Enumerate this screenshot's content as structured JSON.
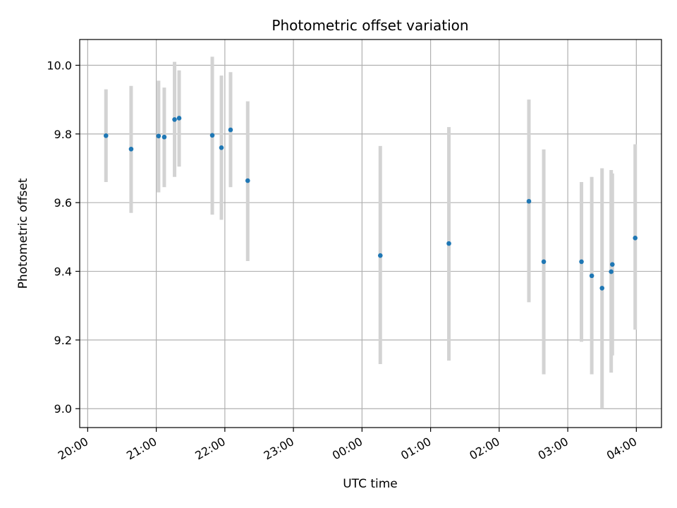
{
  "chart_data": {
    "type": "scatter",
    "title": "Photometric offset variation",
    "xlabel": "UTC time",
    "ylabel": "Photometric offset",
    "x_range": [
      "19:53",
      "04:22"
    ],
    "ylim": [
      8.945,
      10.075
    ],
    "y_ticks": [
      9.0,
      9.2,
      9.4,
      9.6,
      9.8,
      10.0
    ],
    "x_ticks": [
      "20:00",
      "21:00",
      "22:00",
      "23:00",
      "00:00",
      "01:00",
      "02:00",
      "03:00",
      "04:00"
    ],
    "grid": true,
    "marker_color": "#1f77b4",
    "errorbar_color": "#d3d3d3",
    "points": [
      {
        "time": "20:16",
        "y": 9.795,
        "err_low": 9.66,
        "err_high": 9.93
      },
      {
        "time": "20:38",
        "y": 9.756,
        "err_low": 9.57,
        "err_high": 9.94
      },
      {
        "time": "21:02",
        "y": 9.794,
        "err_low": 9.63,
        "err_high": 9.955
      },
      {
        "time": "21:07",
        "y": 9.791,
        "err_low": 9.645,
        "err_high": 9.935
      },
      {
        "time": "21:16",
        "y": 9.842,
        "err_low": 9.675,
        "err_high": 10.01
      },
      {
        "time": "21:20",
        "y": 9.846,
        "err_low": 9.705,
        "err_high": 9.985
      },
      {
        "time": "21:49",
        "y": 9.796,
        "err_low": 9.565,
        "err_high": 10.025
      },
      {
        "time": "21:57",
        "y": 9.76,
        "err_low": 9.55,
        "err_high": 9.97
      },
      {
        "time": "22:05",
        "y": 9.812,
        "err_low": 9.645,
        "err_high": 9.98
      },
      {
        "time": "22:20",
        "y": 9.664,
        "err_low": 9.43,
        "err_high": 9.895
      },
      {
        "time": "00:16",
        "y": 9.446,
        "err_low": 9.13,
        "err_high": 9.765
      },
      {
        "time": "01:16",
        "y": 9.481,
        "err_low": 9.14,
        "err_high": 9.82
      },
      {
        "time": "02:26",
        "y": 9.604,
        "err_low": 9.31,
        "err_high": 9.9
      },
      {
        "time": "02:39",
        "y": 9.428,
        "err_low": 9.1,
        "err_high": 9.755
      },
      {
        "time": "03:12",
        "y": 9.428,
        "err_low": 9.195,
        "err_high": 9.66
      },
      {
        "time": "03:21",
        "y": 9.387,
        "err_low": 9.1,
        "err_high": 9.675
      },
      {
        "time": "03:30",
        "y": 9.351,
        "err_low": 9.0,
        "err_high": 9.7
      },
      {
        "time": "03:38",
        "y": 9.399,
        "err_low": 9.105,
        "err_high": 9.695
      },
      {
        "time": "03:39",
        "y": 9.42,
        "err_low": 9.155,
        "err_high": 9.685
      },
      {
        "time": "03:59",
        "y": 9.497,
        "err_low": 9.23,
        "err_high": 9.77
      }
    ]
  }
}
